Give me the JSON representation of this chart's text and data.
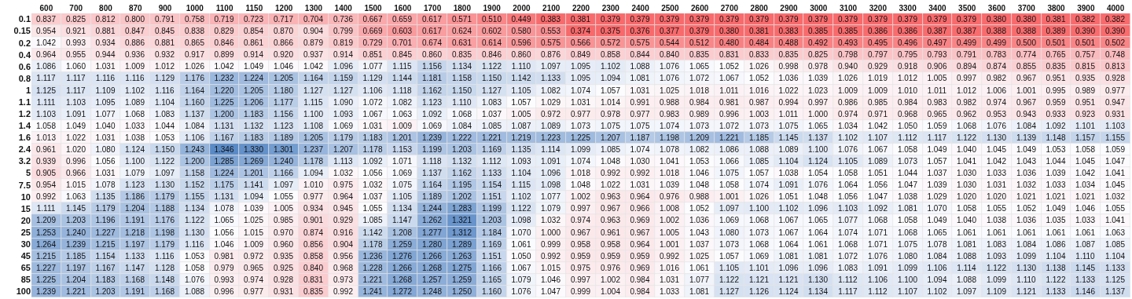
{
  "chart_data": {
    "type": "heatmap",
    "cell_labels": [
      [
        "0.837",
        "0.825",
        "0.812",
        "0.800",
        "0.791",
        "0.758",
        "0.719",
        "0.723",
        "0.717",
        "0.704",
        "0.736",
        "0.667",
        "0.659",
        "0.617",
        "0.571",
        "0.510",
        "0.449",
        "0.383",
        "0.381",
        "0.379",
        "0.379",
        "0.379",
        "0.379",
        "0.379",
        "0.379",
        "0.379",
        "0.379",
        "0.379",
        "0.379",
        "0.379",
        "0.379",
        "0.379",
        "0.380",
        "0.380",
        "0.381",
        "0.382",
        "0.382"
      ],
      [
        "0.954",
        "0.921",
        "0.881",
        "0.847",
        "0.845",
        "0.838",
        "0.829",
        "0.854",
        "0.870",
        "0.904",
        "0.799",
        "0.669",
        "0.603",
        "0.617",
        "0.624",
        "0.602",
        "0.580",
        "0.553",
        "0.374",
        "0.375",
        "0.376",
        "0.377",
        "0.379",
        "0.380",
        "0.381",
        "0.383",
        "0.385",
        "0.385",
        "0.386",
        "0.386",
        "0.387",
        "0.387",
        "0.388",
        "0.388",
        "0.389",
        "0.390",
        "0.390"
      ],
      [
        "1.042",
        "0.993",
        "0.934",
        "0.886",
        "0.881",
        "0.865",
        "0.846",
        "0.861",
        "0.866",
        "0.879",
        "0.819",
        "0.729",
        "0.701",
        "0.674",
        "0.631",
        "0.614",
        "0.596",
        "0.575",
        "0.566",
        "0.572",
        "0.575",
        "0.544",
        "0.512",
        "0.480",
        "0.484",
        "0.488",
        "0.492",
        "0.493",
        "0.495",
        "0.496",
        "0.497",
        "0.499",
        "0.499",
        "0.500",
        "0.501",
        "0.501",
        "0.502"
      ],
      [
        "0.964",
        "0.955",
        "0.944",
        "0.936",
        "0.932",
        "0.917",
        "0.899",
        "0.914",
        "0.920",
        "0.937",
        "0.914",
        "0.851",
        "0.845",
        "0.860",
        "0.835",
        "0.846",
        "0.860",
        "0.876",
        "0.849",
        "0.858",
        "0.844",
        "0.840",
        "0.835",
        "0.831",
        "0.833",
        "0.835",
        "0.825",
        "0.798",
        "0.797",
        "0.795",
        "0.793",
        "0.791",
        "0.783",
        "0.774",
        "0.765",
        "0.757",
        "0.748"
      ],
      [
        "1.086",
        "1.060",
        "1.031",
        "1.009",
        "1.012",
        "1.026",
        "1.042",
        "1.049",
        "1.046",
        "1.042",
        "1.096",
        "1.077",
        "1.115",
        "1.156",
        "1.134",
        "1.122",
        "1.110",
        "1.097",
        "1.095",
        "1.102",
        "1.088",
        "1.076",
        "1.065",
        "1.052",
        "1.026",
        "0.998",
        "0.978",
        "0.940",
        "0.929",
        "0.918",
        "0.906",
        "0.894",
        "0.874",
        "0.855",
        "0.835",
        "0.815",
        "0.813"
      ],
      [
        "1.117",
        "1.117",
        "1.116",
        "1.116",
        "1.129",
        "1.176",
        "1.232",
        "1.224",
        "1.205",
        "1.164",
        "1.159",
        "1.129",
        "1.144",
        "1.181",
        "1.158",
        "1.150",
        "1.142",
        "1.133",
        "1.095",
        "1.094",
        "1.081",
        "1.076",
        "1.072",
        "1.067",
        "1.052",
        "1.036",
        "1.039",
        "1.026",
        "1.019",
        "1.012",
        "1.005",
        "0.997",
        "0.982",
        "0.967",
        "0.951",
        "0.935",
        "0.928"
      ],
      [
        "1.125",
        "1.117",
        "1.109",
        "1.102",
        "1.116",
        "1.164",
        "1.220",
        "1.205",
        "1.180",
        "1.127",
        "1.127",
        "1.106",
        "1.118",
        "1.162",
        "1.150",
        "1.127",
        "1.105",
        "1.082",
        "1.074",
        "1.057",
        "1.031",
        "1.025",
        "1.018",
        "1.011",
        "1.016",
        "1.022",
        "1.023",
        "1.009",
        "1.009",
        "1.010",
        "1.011",
        "1.012",
        "1.006",
        "1.001",
        "0.995",
        "0.989",
        "0.977"
      ],
      [
        "1.111",
        "1.103",
        "1.095",
        "1.089",
        "1.104",
        "1.160",
        "1.225",
        "1.206",
        "1.177",
        "1.115",
        "1.090",
        "1.072",
        "1.082",
        "1.123",
        "1.110",
        "1.083",
        "1.057",
        "1.029",
        "1.031",
        "1.014",
        "0.991",
        "0.988",
        "0.984",
        "0.981",
        "0.987",
        "0.994",
        "0.997",
        "0.986",
        "0.985",
        "0.984",
        "0.983",
        "0.982",
        "0.974",
        "0.967",
        "0.959",
        "0.951",
        "0.947"
      ],
      [
        "1.103",
        "1.091",
        "1.077",
        "1.068",
        "1.083",
        "1.137",
        "1.200",
        "1.183",
        "1.156",
        "1.100",
        "1.093",
        "1.067",
        "1.063",
        "1.092",
        "1.068",
        "1.037",
        "1.005",
        "0.972",
        "0.977",
        "0.978",
        "0.977",
        "0.983",
        "0.989",
        "0.996",
        "1.003",
        "1.011",
        "1.000",
        "0.974",
        "0.971",
        "0.968",
        "0.965",
        "0.962",
        "0.953",
        "0.943",
        "0.933",
        "0.923",
        "0.931"
      ],
      [
        "1.058",
        "1.049",
        "1.040",
        "1.033",
        "1.044",
        "1.084",
        "1.131",
        "1.132",
        "1.123",
        "1.108",
        "1.069",
        "1.031",
        "1.009",
        "1.069",
        "1.084",
        "1.085",
        "1.087",
        "1.089",
        "1.073",
        "1.075",
        "1.075",
        "1.074",
        "1.073",
        "1.072",
        "1.073",
        "1.075",
        "1.065",
        "1.034",
        "1.042",
        "1.050",
        "1.059",
        "1.068",
        "1.076",
        "1.084",
        "1.092",
        "1.101",
        "1.103"
      ],
      [
        "1.013",
        "1.022",
        "1.031",
        "1.038",
        "1.053",
        "1.106",
        "1.167",
        "1.183",
        "1.189",
        "1.205",
        "1.179",
        "1.183",
        "1.201",
        "1.239",
        "1.222",
        "1.221",
        "1.219",
        "1.223",
        "1.225",
        "1.207",
        "1.187",
        "1.198",
        "1.209",
        "1.221",
        "1.185",
        "1.145",
        "1.137",
        "1.102",
        "1.107",
        "1.112",
        "1.117",
        "1.122",
        "1.130",
        "1.139",
        "1.148",
        "1.157",
        "1.155"
      ],
      [
        "0.961",
        "1.020",
        "1.080",
        "1.124",
        "1.150",
        "1.243",
        "1.346",
        "1.330",
        "1.301",
        "1.237",
        "1.207",
        "1.178",
        "1.153",
        "1.199",
        "1.203",
        "1.169",
        "1.135",
        "1.114",
        "1.099",
        "1.085",
        "1.074",
        "1.078",
        "1.082",
        "1.086",
        "1.088",
        "1.089",
        "1.100",
        "1.076",
        "1.067",
        "1.058",
        "1.049",
        "1.040",
        "1.045",
        "1.049",
        "1.053",
        "1.058",
        "1.059"
      ],
      [
        "0.939",
        "0.996",
        "1.056",
        "1.100",
        "1.122",
        "1.200",
        "1.285",
        "1.269",
        "1.240",
        "1.178",
        "1.113",
        "1.092",
        "1.071",
        "1.118",
        "1.132",
        "1.112",
        "1.093",
        "1.091",
        "1.074",
        "1.048",
        "1.030",
        "1.041",
        "1.053",
        "1.066",
        "1.085",
        "1.104",
        "1.124",
        "1.105",
        "1.089",
        "1.073",
        "1.057",
        "1.041",
        "1.042",
        "1.043",
        "1.044",
        "1.045",
        "1.047"
      ],
      [
        "0.905",
        "0.966",
        "1.031",
        "1.079",
        "1.097",
        "1.158",
        "1.224",
        "1.201",
        "1.166",
        "1.094",
        "1.032",
        "1.056",
        "1.069",
        "1.137",
        "1.162",
        "1.133",
        "1.104",
        "1.096",
        "1.018",
        "0.992",
        "0.992",
        "1.018",
        "1.046",
        "1.075",
        "1.057",
        "1.038",
        "1.054",
        "1.058",
        "1.051",
        "1.044",
        "1.037",
        "1.030",
        "1.033",
        "1.036",
        "1.039",
        "1.042",
        "1.041"
      ],
      [
        "0.954",
        "1.015",
        "1.078",
        "1.123",
        "1.130",
        "1.152",
        "1.175",
        "1.141",
        "1.097",
        "1.010",
        "0.975",
        "1.032",
        "1.075",
        "1.164",
        "1.195",
        "1.154",
        "1.115",
        "1.098",
        "1.048",
        "1.022",
        "1.031",
        "1.039",
        "1.048",
        "1.058",
        "1.074",
        "1.091",
        "1.076",
        "1.064",
        "1.056",
        "1.047",
        "1.039",
        "1.030",
        "1.031",
        "1.032",
        "1.033",
        "1.034",
        "1.045"
      ],
      [
        "0.992",
        "1.063",
        "1.135",
        "1.186",
        "1.179",
        "1.155",
        "1.131",
        "1.094",
        "1.055",
        "0.977",
        "0.964",
        "1.037",
        "1.105",
        "1.189",
        "1.202",
        "1.151",
        "1.102",
        "1.077",
        "1.002",
        "0.963",
        "0.964",
        "0.976",
        "0.988",
        "1.001",
        "1.026",
        "1.051",
        "1.048",
        "1.056",
        "1.047",
        "1.038",
        "1.029",
        "1.020",
        "1.020",
        "1.021",
        "1.021",
        "1.021",
        "1.032"
      ],
      [
        "1.111",
        "1.145",
        "1.179",
        "1.204",
        "1.188",
        "1.134",
        "1.078",
        "1.039",
        "1.005",
        "0.934",
        "0.945",
        "1.055",
        "1.134",
        "1.244",
        "1.283",
        "1.199",
        "1.122",
        "1.079",
        "0.997",
        "0.967",
        "0.966",
        "1.008",
        "1.052",
        "1.097",
        "1.100",
        "1.102",
        "1.096",
        "1.103",
        "1.092",
        "1.081",
        "1.070",
        "1.058",
        "1.055",
        "1.052",
        "1.049",
        "1.046",
        "1.055"
      ],
      [
        "1.209",
        "1.203",
        "1.196",
        "1.191",
        "1.176",
        "1.122",
        "1.065",
        "1.025",
        "0.985",
        "0.901",
        "0.929",
        "1.085",
        "1.147",
        "1.262",
        "1.321",
        "1.203",
        "1.098",
        "1.032",
        "0.974",
        "0.963",
        "0.969",
        "1.002",
        "1.036",
        "1.069",
        "1.068",
        "1.067",
        "1.065",
        "1.077",
        "1.068",
        "1.058",
        "1.049",
        "1.040",
        "1.038",
        "1.036",
        "1.035",
        "1.033",
        "1.041"
      ],
      [
        "1.253",
        "1.240",
        "1.227",
        "1.218",
        "1.198",
        "1.130",
        "1.056",
        "1.015",
        "0.970",
        "0.874",
        "0.916",
        "1.142",
        "1.208",
        "1.277",
        "1.312",
        "1.184",
        "1.070",
        "1.000",
        "0.967",
        "0.961",
        "0.967",
        "1.005",
        "1.043",
        "1.080",
        "1.073",
        "1.067",
        "1.064",
        "1.074",
        "1.071",
        "1.068",
        "1.065",
        "1.061",
        "1.061",
        "1.061",
        "1.061",
        "1.061",
        "1.063"
      ],
      [
        "1.264",
        "1.239",
        "1.215",
        "1.197",
        "1.179",
        "1.116",
        "1.046",
        "1.009",
        "0.960",
        "0.856",
        "0.904",
        "1.178",
        "1.259",
        "1.280",
        "1.289",
        "1.169",
        "1.061",
        "0.999",
        "0.958",
        "0.958",
        "0.964",
        "1.001",
        "1.037",
        "1.073",
        "1.068",
        "1.064",
        "1.061",
        "1.068",
        "1.071",
        "1.075",
        "1.078",
        "1.081",
        "1.083",
        "1.084",
        "1.086",
        "1.087",
        "1.085"
      ],
      [
        "1.215",
        "1.185",
        "1.154",
        "1.133",
        "1.116",
        "1.053",
        "0.981",
        "0.972",
        "0.935",
        "0.858",
        "0.956",
        "1.236",
        "1.276",
        "1.266",
        "1.263",
        "1.151",
        "1.050",
        "0.992",
        "0.959",
        "0.959",
        "0.959",
        "0.992",
        "1.025",
        "1.057",
        "1.069",
        "1.081",
        "1.081",
        "1.072",
        "1.076",
        "1.080",
        "1.084",
        "1.088",
        "1.093",
        "1.099",
        "1.104",
        "1.110",
        "1.104"
      ],
      [
        "1.227",
        "1.197",
        "1.167",
        "1.147",
        "1.128",
        "1.058",
        "0.979",
        "0.965",
        "0.925",
        "0.840",
        "0.968",
        "1.228",
        "1.266",
        "1.268",
        "1.275",
        "1.166",
        "1.067",
        "1.015",
        "0.975",
        "0.976",
        "0.969",
        "1.016",
        "1.061",
        "1.105",
        "1.101",
        "1.096",
        "1.096",
        "1.083",
        "1.091",
        "1.099",
        "1.106",
        "1.114",
        "1.122",
        "1.130",
        "1.138",
        "1.145",
        "1.133"
      ],
      [
        "1.225",
        "1.204",
        "1.183",
        "1.168",
        "1.148",
        "1.076",
        "0.993",
        "0.974",
        "0.928",
        "0.831",
        "0.973",
        "1.221",
        "1.268",
        "1.257",
        "1.259",
        "1.165",
        "1.079",
        "1.046",
        "0.997",
        "1.002",
        "0.984",
        "1.031",
        "1.077",
        "1.122",
        "1.121",
        "1.121",
        "1.130",
        "1.112",
        "1.106",
        "1.100",
        "1.094",
        "1.088",
        "1.099",
        "1.110",
        "1.122",
        "1.133",
        "1.125"
      ],
      [
        "1.239",
        "1.221",
        "1.203",
        "1.191",
        "1.168",
        "1.088",
        "0.996",
        "0.977",
        "0.931",
        "0.835",
        "0.992",
        "1.241",
        "1.272",
        "1.248",
        "1.250",
        "1.160",
        "1.076",
        "1.047",
        "0.999",
        "1.004",
        "0.984",
        "1.033",
        "1.081",
        "1.127",
        "1.126",
        "1.124",
        "1.134",
        "1.117",
        "1.112",
        "1.107",
        "1.102",
        "1.097",
        "1.109",
        "1.121",
        "1.133",
        "1.146",
        "1.137"
      ]
    ],
    "categories": [
      "600",
      "700",
      "800",
      "870",
      "900",
      "1000",
      "1100",
      "1150",
      "1200",
      "1300",
      "1400",
      "1500",
      "1600",
      "1700",
      "1800",
      "1900",
      "2000",
      "2100",
      "2200",
      "2300",
      "2400",
      "2500",
      "2600",
      "2700",
      "2800",
      "2900",
      "3000",
      "3100",
      "3200",
      "3300",
      "3400",
      "3500",
      "3600",
      "3700",
      "3800",
      "3900",
      "4000"
    ],
    "y_categories": [
      "0.1",
      "0.15",
      "0.2",
      "0.4",
      "0.6",
      "0.8",
      "1",
      "1.1",
      "1.2",
      "1.4",
      "1.6",
      "2.4",
      "3.2",
      "5",
      "7.5",
      "10",
      "15",
      "20",
      "25",
      "30",
      "45",
      "65",
      "85",
      "100"
    ],
    "cells": [
      [
        0.837,
        0.825,
        0.812,
        0.8,
        0.791,
        0.758,
        0.719,
        0.723,
        0.717,
        0.704,
        0.736,
        0.667,
        0.659,
        0.617,
        0.571,
        0.51,
        0.449,
        0.383,
        0.381,
        0.379,
        0.379,
        0.379,
        0.379,
        0.379,
        0.379,
        0.379,
        0.379,
        0.379,
        0.379,
        0.379,
        0.379,
        0.379,
        0.38,
        0.38,
        0.381,
        0.382,
        0.382
      ],
      [
        0.954,
        0.921,
        0.881,
        0.847,
        0.845,
        0.838,
        0.829,
        0.854,
        0.87,
        0.904,
        0.799,
        0.669,
        0.603,
        0.617,
        0.624,
        0.602,
        0.58,
        0.553,
        0.374,
        0.375,
        0.376,
        0.377,
        0.379,
        0.38,
        0.381,
        0.383,
        0.385,
        0.385,
        0.386,
        0.386,
        0.387,
        0.387,
        0.388,
        0.388,
        0.389,
        0.39,
        0.39
      ],
      [
        1.042,
        0.993,
        0.934,
        0.886,
        0.881,
        0.865,
        0.846,
        0.861,
        0.866,
        0.879,
        0.819,
        0.729,
        0.701,
        0.674,
        0.631,
        0.614,
        0.596,
        0.575,
        0.566,
        0.572,
        0.575,
        0.544,
        0.512,
        0.48,
        0.484,
        0.488,
        0.492,
        0.493,
        0.495,
        0.496,
        0.497,
        0.499,
        0.499,
        0.5,
        0.501,
        0.501,
        0.502
      ],
      [
        0.964,
        0.955,
        0.944,
        0.936,
        0.932,
        0.917,
        0.899,
        0.914,
        0.92,
        0.937,
        0.914,
        0.851,
        0.845,
        0.86,
        0.835,
        0.846,
        0.86,
        0.876,
        0.849,
        0.858,
        0.844,
        0.84,
        0.835,
        0.831,
        0.833,
        0.835,
        0.825,
        0.798,
        0.797,
        0.795,
        0.793,
        0.791,
        0.783,
        0.774,
        0.765,
        0.757,
        0.748
      ],
      [
        1.086,
        1.06,
        1.031,
        1.009,
        1.012,
        1.026,
        1.042,
        1.049,
        1.046,
        1.042,
        1.096,
        1.077,
        1.115,
        1.156,
        1.134,
        1.122,
        1.11,
        1.097,
        1.095,
        1.102,
        1.088,
        1.076,
        1.065,
        1.052,
        1.026,
        0.998,
        0.978,
        0.94,
        0.929,
        0.918,
        0.906,
        0.894,
        0.874,
        0.855,
        0.835,
        0.815,
        0.813
      ],
      [
        1.117,
        1.117,
        1.116,
        1.116,
        1.129,
        1.176,
        1.232,
        1.224,
        1.205,
        1.164,
        1.159,
        1.129,
        1.144,
        1.181,
        1.158,
        1.15,
        1.142,
        1.133,
        1.095,
        1.094,
        1.081,
        1.076,
        1.072,
        1.067,
        1.052,
        1.036,
        1.039,
        1.026,
        1.019,
        1.012,
        1.005,
        0.997,
        0.982,
        0.967,
        0.951,
        0.935,
        0.928
      ],
      [
        1.125,
        1.117,
        1.109,
        1.102,
        1.116,
        1.164,
        1.22,
        1.205,
        1.18,
        1.127,
        1.127,
        1.106,
        1.118,
        1.162,
        1.15,
        1.127,
        1.105,
        1.082,
        1.074,
        1.057,
        1.031,
        1.025,
        1.018,
        1.011,
        1.016,
        1.022,
        1.023,
        1.009,
        1.009,
        1.01,
        1.011,
        1.012,
        1.006,
        1.001,
        0.995,
        0.989,
        0.977
      ],
      [
        1.111,
        1.103,
        1.095,
        1.089,
        1.104,
        1.16,
        1.225,
        1.206,
        1.177,
        1.115,
        1.09,
        1.072,
        1.082,
        1.123,
        1.11,
        1.083,
        1.057,
        1.029,
        1.031,
        1.014,
        0.991,
        0.988,
        0.984,
        0.981,
        0.987,
        0.994,
        0.997,
        0.986,
        0.985,
        0.984,
        0.983,
        0.982,
        0.974,
        0.967,
        0.959,
        0.951,
        0.947
      ],
      [
        1.103,
        1.091,
        1.077,
        1.068,
        1.083,
        1.137,
        1.2,
        1.183,
        1.156,
        1.1,
        1.093,
        1.067,
        1.063,
        1.092,
        1.068,
        1.037,
        1.005,
        0.972,
        0.977,
        0.978,
        0.977,
        0.983,
        0.989,
        0.996,
        1.003,
        1.011,
        1.0,
        0.974,
        0.971,
        0.968,
        0.965,
        0.962,
        0.953,
        0.943,
        0.933,
        0.923,
        0.931
      ],
      [
        1.058,
        1.049,
        1.04,
        1.033,
        1.044,
        1.084,
        1.131,
        1.132,
        1.123,
        1.108,
        1.069,
        1.031,
        1.009,
        1.069,
        1.084,
        1.085,
        1.087,
        1.089,
        1.073,
        1.075,
        1.075,
        1.074,
        1.073,
        1.072,
        1.073,
        1.075,
        1.065,
        1.034,
        1.042,
        1.05,
        1.059,
        1.068,
        1.076,
        1.084,
        1.092,
        1.101,
        1.103
      ],
      [
        1.013,
        1.022,
        1.031,
        1.038,
        1.053,
        1.106,
        1.167,
        1.183,
        1.189,
        1.205,
        1.179,
        1.183,
        1.201,
        1.239,
        1.222,
        1.221,
        1.219,
        1.223,
        1.225,
        1.207,
        1.187,
        1.198,
        1.209,
        1.221,
        1.185,
        1.145,
        1.137,
        1.102,
        1.107,
        1.112,
        1.117,
        1.122,
        1.13,
        1.139,
        1.148,
        1.157,
        1.155
      ],
      [
        0.961,
        1.02,
        1.08,
        1.124,
        1.15,
        1.243,
        1.346,
        1.33,
        1.301,
        1.237,
        1.207,
        1.178,
        1.153,
        1.199,
        1.203,
        1.169,
        1.135,
        1.114,
        1.099,
        1.085,
        1.074,
        1.078,
        1.082,
        1.086,
        1.088,
        1.089,
        1.1,
        1.076,
        1.067,
        1.058,
        1.049,
        1.04,
        1.045,
        1.049,
        1.053,
        1.058,
        1.059
      ],
      [
        0.939,
        0.996,
        1.056,
        1.1,
        1.122,
        1.2,
        1.285,
        1.269,
        1.24,
        1.178,
        1.113,
        1.092,
        1.071,
        1.118,
        1.132,
        1.112,
        1.093,
        1.091,
        1.074,
        1.048,
        1.03,
        1.041,
        1.053,
        1.066,
        1.085,
        1.104,
        1.124,
        1.105,
        1.089,
        1.073,
        1.057,
        1.041,
        1.042,
        1.043,
        1.044,
        1.045,
        1.047
      ],
      [
        0.905,
        0.966,
        1.031,
        1.079,
        1.097,
        1.158,
        1.224,
        1.201,
        1.166,
        1.094,
        1.032,
        1.056,
        1.069,
        1.137,
        1.162,
        1.133,
        1.104,
        1.096,
        1.018,
        0.992,
        0.992,
        1.018,
        1.046,
        1.075,
        1.057,
        1.038,
        1.054,
        1.058,
        1.051,
        1.044,
        1.037,
        1.03,
        1.033,
        1.036,
        1.039,
        1.042,
        1.041
      ],
      [
        0.954,
        1.015,
        1.078,
        1.123,
        1.13,
        1.152,
        1.175,
        1.141,
        1.097,
        1.01,
        0.975,
        1.032,
        1.075,
        1.164,
        1.195,
        1.154,
        1.115,
        1.098,
        1.048,
        1.022,
        1.031,
        1.039,
        1.048,
        1.058,
        1.074,
        1.091,
        1.076,
        1.064,
        1.056,
        1.047,
        1.039,
        1.03,
        1.031,
        1.032,
        1.033,
        1.034,
        1.045
      ],
      [
        0.992,
        1.063,
        1.135,
        1.186,
        1.179,
        1.155,
        1.131,
        1.094,
        1.055,
        0.977,
        0.964,
        1.037,
        1.105,
        1.189,
        1.202,
        1.151,
        1.102,
        1.077,
        1.002,
        0.963,
        0.964,
        0.976,
        0.988,
        1.001,
        1.026,
        1.051,
        1.048,
        1.056,
        1.047,
        1.038,
        1.029,
        1.02,
        1.02,
        1.021,
        1.021,
        1.021,
        1.032
      ],
      [
        1.111,
        1.145,
        1.179,
        1.204,
        1.188,
        1.134,
        1.078,
        1.039,
        1.005,
        0.934,
        0.945,
        1.055,
        1.134,
        1.244,
        1.283,
        1.199,
        1.122,
        1.079,
        0.997,
        0.967,
        0.966,
        1.008,
        1.052,
        1.097,
        1.1,
        1.102,
        1.096,
        1.103,
        1.092,
        1.081,
        1.07,
        1.058,
        1.055,
        1.052,
        1.049,
        1.046,
        1.055
      ],
      [
        1.209,
        1.203,
        1.196,
        1.191,
        1.176,
        1.122,
        1.065,
        1.025,
        0.985,
        0.901,
        0.929,
        1.085,
        1.147,
        1.262,
        1.321,
        1.203,
        1.098,
        1.032,
        0.974,
        0.963,
        0.969,
        1.002,
        1.036,
        1.069,
        1.068,
        1.067,
        1.065,
        1.077,
        1.068,
        1.058,
        1.049,
        1.04,
        1.038,
        1.036,
        1.035,
        1.033,
        1.041
      ],
      [
        1.253,
        1.24,
        1.227,
        1.218,
        1.198,
        1.13,
        1.056,
        1.015,
        0.97,
        0.874,
        0.916,
        1.142,
        1.208,
        1.277,
        1.312,
        1.184,
        1.07,
        1.0,
        0.967,
        0.961,
        0.967,
        1.005,
        1.043,
        1.08,
        1.073,
        1.067,
        1.064,
        1.074,
        1.071,
        1.068,
        1.065,
        1.061,
        1.061,
        1.061,
        1.061,
        1.061,
        1.063
      ],
      [
        1.264,
        1.239,
        1.215,
        1.197,
        1.179,
        1.116,
        1.046,
        1.009,
        0.96,
        0.856,
        0.904,
        1.178,
        1.259,
        1.28,
        1.289,
        1.169,
        1.061,
        0.999,
        0.958,
        0.958,
        0.964,
        1.001,
        1.037,
        1.073,
        1.068,
        1.064,
        1.061,
        1.068,
        1.071,
        1.075,
        1.078,
        1.081,
        1.083,
        1.084,
        1.086,
        1.087,
        1.085
      ],
      [
        1.215,
        1.185,
        1.154,
        1.133,
        1.116,
        1.053,
        0.981,
        0.972,
        0.935,
        0.858,
        0.956,
        1.236,
        1.276,
        1.266,
        1.263,
        1.151,
        1.05,
        0.992,
        0.959,
        0.959,
        0.959,
        0.992,
        1.025,
        1.057,
        1.069,
        1.081,
        1.081,
        1.072,
        1.076,
        1.08,
        1.084,
        1.088,
        1.093,
        1.099,
        1.104,
        1.11,
        1.104
      ],
      [
        1.227,
        1.197,
        1.167,
        1.147,
        1.128,
        1.058,
        0.979,
        0.965,
        0.925,
        0.84,
        0.968,
        1.228,
        1.266,
        1.268,
        1.275,
        1.166,
        1.067,
        1.015,
        0.975,
        0.976,
        0.969,
        1.016,
        1.061,
        1.105,
        1.101,
        1.096,
        1.096,
        1.083,
        1.091,
        1.099,
        1.106,
        1.114,
        1.122,
        1.13,
        1.138,
        1.145,
        1.133
      ],
      [
        1.225,
        1.204,
        1.183,
        1.168,
        1.148,
        1.076,
        0.993,
        0.974,
        0.928,
        0.831,
        0.973,
        1.221,
        1.268,
        1.257,
        1.259,
        1.165,
        1.079,
        1.046,
        0.997,
        1.002,
        0.984,
        1.031,
        1.077,
        1.122,
        1.121,
        1.121,
        1.13,
        1.112,
        1.106,
        1.1,
        1.094,
        1.088,
        1.099,
        1.11,
        1.122,
        1.133,
        1.125
      ],
      [
        1.239,
        1.221,
        1.203,
        1.191,
        1.168,
        1.088,
        0.996,
        0.977,
        0.931,
        0.835,
        0.992,
        1.241,
        1.272,
        1.248,
        1.25,
        1.16,
        1.076,
        1.047,
        0.999,
        1.004,
        0.984,
        1.033,
        1.081,
        1.127,
        1.126,
        1.124,
        1.134,
        1.117,
        1.112,
        1.107,
        1.102,
        1.097,
        1.109,
        1.121,
        1.133,
        1.146,
        1.137
      ]
    ]
  }
}
